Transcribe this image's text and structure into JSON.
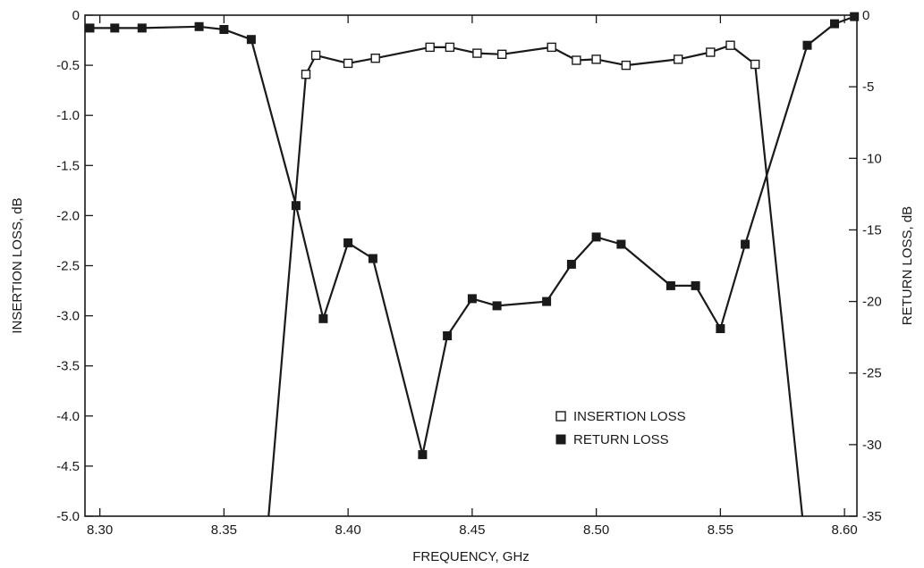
{
  "chart_data": {
    "type": "line",
    "title": "",
    "xlabel": "FREQUENCY, GHz",
    "ylabel": "INSERTION LOSS, dB",
    "y2label": "RETURN LOSS, dB",
    "xlim": [
      8.294,
      8.605
    ],
    "ylim": [
      -5.0,
      0
    ],
    "y2lim": [
      -35,
      0
    ],
    "x_ticks": [
      8.3,
      8.35,
      8.4,
      8.45,
      8.5,
      8.55,
      8.6
    ],
    "x_tick_labels": [
      "8.30",
      "8.35",
      "8.40",
      "8.45",
      "8.50",
      "8.55",
      "8.60"
    ],
    "y_ticks": [
      0,
      -0.5,
      -1.0,
      -1.5,
      -2.0,
      -2.5,
      -3.0,
      -3.5,
      -4.0,
      -4.5,
      -5.0
    ],
    "y_tick_labels": [
      "0",
      "-0.5",
      "-1.0",
      "-1.5",
      "-2.0",
      "-2.5",
      "-3.0",
      "-3.5",
      "-4.0",
      "-4.5",
      "-5.0"
    ],
    "y2_ticks": [
      0,
      -5,
      -10,
      -15,
      -20,
      -25,
      -30,
      -35
    ],
    "y2_tick_labels": [
      "0",
      "-5",
      "-10",
      "-15",
      "-20",
      "-25",
      "-30",
      "-35"
    ],
    "grid": false,
    "legend_position": "lower-right",
    "series": [
      {
        "name": "INSERTION LOSS",
        "axis": "left",
        "marker": "open-square",
        "color": "#1a1a1a",
        "x": [
          8.368,
          8.383,
          8.387,
          8.4,
          8.411,
          8.433,
          8.441,
          8.452,
          8.462,
          8.482,
          8.492,
          8.5,
          8.512,
          8.533,
          8.546,
          8.554,
          8.564,
          8.583
        ],
        "y": [
          -5.0,
          -0.59,
          -0.4,
          -0.48,
          -0.43,
          -0.32,
          -0.32,
          -0.38,
          -0.39,
          -0.32,
          -0.45,
          -0.44,
          -0.5,
          -0.44,
          -0.37,
          -0.3,
          -0.49,
          -5.0
        ],
        "markers": [
          false,
          true,
          true,
          true,
          true,
          true,
          true,
          true,
          true,
          true,
          true,
          true,
          true,
          true,
          true,
          true,
          true,
          false
        ]
      },
      {
        "name": "RETURN LOSS",
        "axis": "right",
        "marker": "filled-square",
        "color": "#1a1a1a",
        "x": [
          8.296,
          8.306,
          8.317,
          8.34,
          8.35,
          8.361,
          8.379,
          8.39,
          8.4,
          8.41,
          8.43,
          8.44,
          8.45,
          8.46,
          8.48,
          8.49,
          8.5,
          8.51,
          8.53,
          8.54,
          8.55,
          8.56,
          8.585,
          8.596,
          8.604
        ],
        "y": [
          -0.9,
          -0.9,
          -0.9,
          -0.8,
          -1.0,
          -1.7,
          -13.3,
          -21.2,
          -15.9,
          -17.0,
          -30.7,
          -22.4,
          -19.8,
          -20.3,
          -20.0,
          -17.4,
          -15.5,
          -16.0,
          -18.9,
          -18.9,
          -21.9,
          -16.0,
          -2.1,
          -0.6,
          -0.1
        ]
      }
    ]
  }
}
